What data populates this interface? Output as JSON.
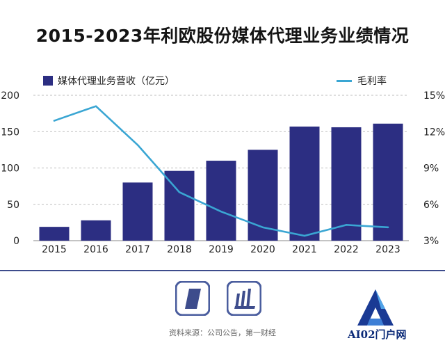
{
  "header": {
    "title": "2015-2023年利欧股份媒体代理业务业绩情况"
  },
  "legend": {
    "bar_label": "媒体代理业务营收（亿元）",
    "line_label": "毛利率"
  },
  "footer": {
    "source": "资料来源：公司公告，第一财经"
  },
  "watermark": {
    "text": "AI02门户网"
  },
  "colors": {
    "bar": "#2c2e82",
    "line": "#3aa6d3",
    "grid": "#bdbdbd",
    "divider": "#3d4c8c"
  },
  "chart_data": {
    "type": "bar",
    "title": "2015-2023年利欧股份媒体代理业务业绩情况",
    "categories": [
      "2015",
      "2016",
      "2017",
      "2018",
      "2019",
      "2020",
      "2021",
      "2022",
      "2023"
    ],
    "series": [
      {
        "name": "媒体代理业务营收（亿元）",
        "type": "bar",
        "axis": "left",
        "values": [
          19,
          28,
          80,
          96,
          110,
          125,
          157,
          156,
          161
        ]
      },
      {
        "name": "毛利率",
        "type": "line",
        "axis": "right",
        "unit": "%",
        "values": [
          12.9,
          14.1,
          10.9,
          7.0,
          5.4,
          4.1,
          3.4,
          4.3,
          4.1
        ]
      }
    ],
    "y_left": {
      "min": 0,
      "max": 200,
      "ticks": [
        "0",
        "50",
        "100",
        "150",
        "200"
      ]
    },
    "y_right": {
      "min": 3,
      "max": 15,
      "ticks": [
        "3%",
        "6%",
        "9%",
        "12%",
        "15%"
      ]
    },
    "grid": true,
    "legend_position": "top"
  }
}
